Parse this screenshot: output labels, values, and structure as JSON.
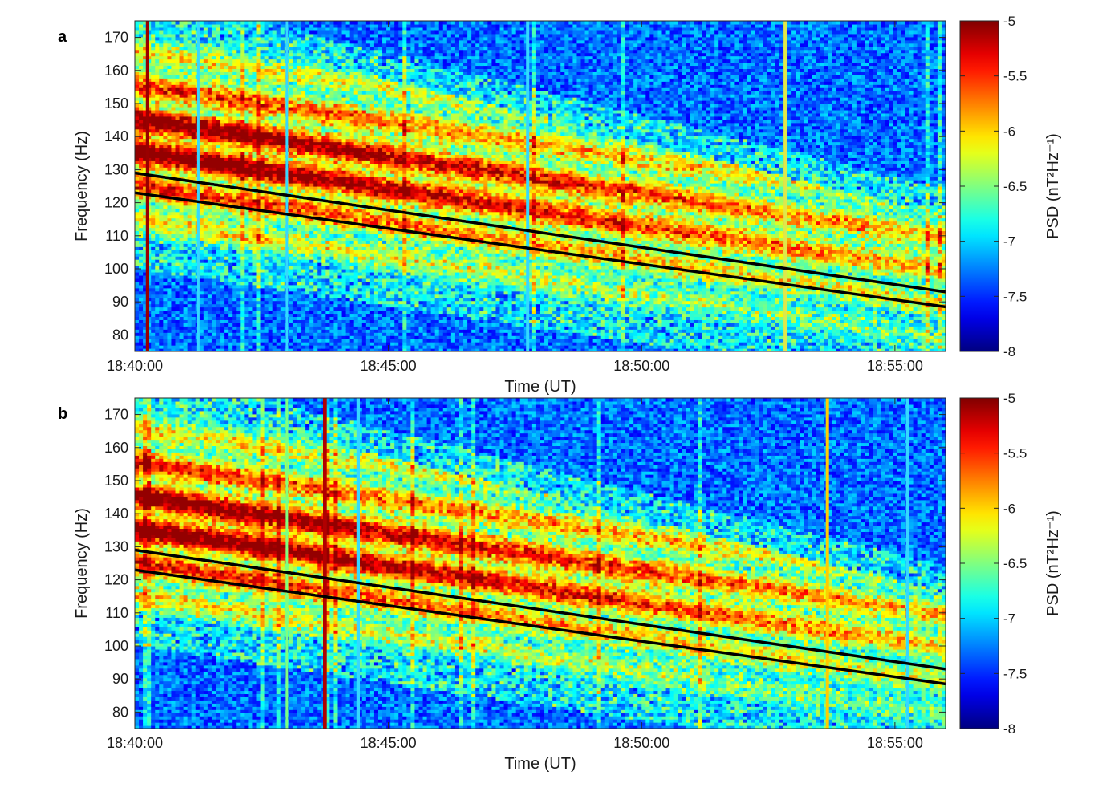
{
  "chart_data": [
    {
      "type": "heatmap",
      "panel_label": "a",
      "xlabel": "Time (UT)",
      "ylabel": "Frequency (Hz)",
      "x_range": [
        "18:40:00",
        "18:56:00"
      ],
      "ylim": [
        75,
        175
      ],
      "x_ticks": [
        "18:40:00",
        "18:45:00",
        "18:50:00",
        "18:55:00"
      ],
      "y_ticks": [
        80,
        90,
        100,
        110,
        120,
        130,
        140,
        150,
        160,
        170
      ],
      "colorbar": {
        "label": "PSD (nT²Hz⁻¹)",
        "range": [
          -8,
          -5
        ],
        "ticks": [
          -5,
          -5.5,
          -6,
          -6.5,
          -7,
          -7.5,
          -8
        ],
        "colormap": "jet"
      },
      "lines": [
        {
          "color": "#000000",
          "points": [
            [
              "18:40:00",
              129
            ],
            [
              "18:56:00",
              93
            ]
          ]
        },
        {
          "color": "#000000",
          "points": [
            [
              "18:40:00",
              123
            ],
            [
              "18:56:00",
              88.5
            ]
          ]
        }
      ],
      "vertical_stripes": [
        {
          "time": "18:40:15",
          "color": "#9a0000"
        },
        {
          "time": "18:41:15",
          "color": "#35d8ff"
        },
        {
          "time": "18:43:00",
          "color": "#35d8ff"
        },
        {
          "time": "18:47:45",
          "color": "#35d8ff"
        },
        {
          "time": "18:52:50",
          "color": "#dfe84a"
        }
      ]
    },
    {
      "type": "heatmap",
      "panel_label": "b",
      "xlabel": "Time (UT)",
      "ylabel": "Frequency (Hz)",
      "x_range": [
        "18:40:00",
        "18:56:00"
      ],
      "ylim": [
        75,
        175
      ],
      "x_ticks": [
        "18:40:00",
        "18:45:00",
        "18:50:00",
        "18:55:00"
      ],
      "y_ticks": [
        80,
        90,
        100,
        110,
        120,
        130,
        140,
        150,
        160,
        170
      ],
      "colorbar": {
        "label": "PSD (nT²Hz⁻¹)",
        "range": [
          -8,
          -5
        ],
        "ticks": [
          -5,
          -5.5,
          -6,
          -6.5,
          -7,
          -7.5,
          -8
        ],
        "colormap": "jet"
      },
      "lines": [
        {
          "color": "#000000",
          "points": [
            [
              "18:40:00",
              129
            ],
            [
              "18:56:00",
              93
            ]
          ]
        },
        {
          "color": "#000000",
          "points": [
            [
              "18:40:00",
              123
            ],
            [
              "18:56:00",
              88.5
            ]
          ]
        }
      ],
      "vertical_stripes": [
        {
          "time": "18:43:00",
          "color": "#7fff7f"
        },
        {
          "time": "18:43:45",
          "color": "#b00000"
        },
        {
          "time": "18:44:25",
          "color": "#35d8ff"
        },
        {
          "time": "18:53:40",
          "color": "#ffcc00"
        },
        {
          "time": "18:55:15",
          "color": "#35d8ff"
        }
      ]
    }
  ]
}
